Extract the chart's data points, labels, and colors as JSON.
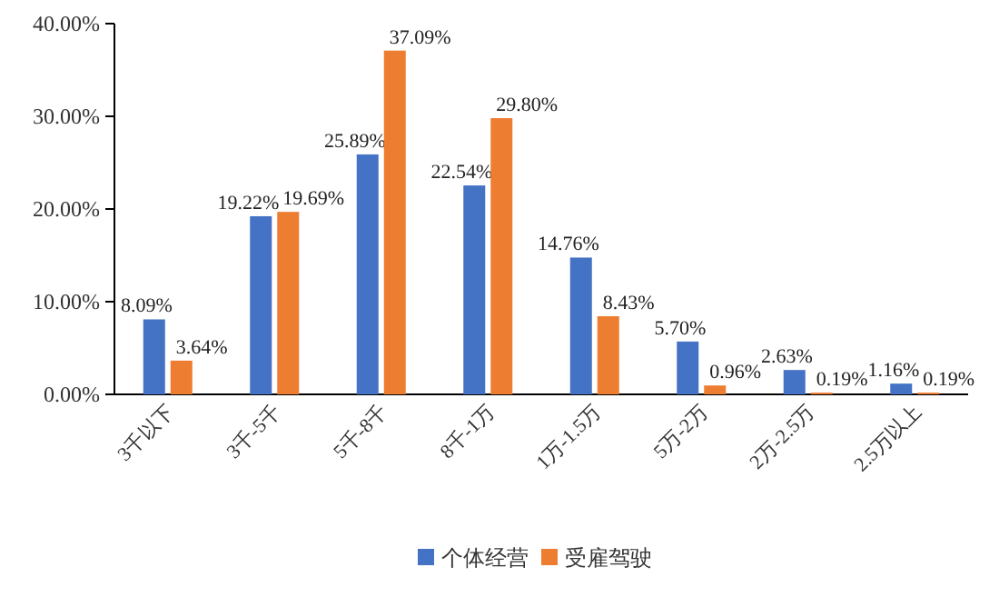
{
  "chart_data": {
    "type": "bar",
    "categories": [
      "3千以下",
      "3千-5千",
      "5千-8千",
      "8千-1万",
      "1万-1.5万",
      "5万-2万",
      "2万-2.5万",
      "2.5万以上"
    ],
    "series": [
      {
        "name": "个体经营",
        "color": "#4472c4",
        "values": [
          8.09,
          19.22,
          25.89,
          22.54,
          14.76,
          5.7,
          2.63,
          1.16
        ],
        "value_labels": [
          "8.09%",
          "19.22%",
          "25.89%",
          "22.54%",
          "14.76%",
          "5.70%",
          "2.63%",
          "1.16%"
        ]
      },
      {
        "name": "受雇驾驶",
        "color": "#ed7d31",
        "values": [
          3.64,
          19.69,
          37.09,
          29.8,
          8.43,
          0.96,
          0.19,
          0.19
        ],
        "value_labels": [
          "3.64%",
          "19.69%",
          "37.09%",
          "29.80%",
          "8.43%",
          "0.96%",
          "0.19%",
          "0.19%"
        ]
      }
    ],
    "ylim": [
      0,
      40
    ],
    "yticks": [
      {
        "value": 0,
        "label": "0.00%"
      },
      {
        "value": 10,
        "label": "10.00%"
      },
      {
        "value": 20,
        "label": "20.00%"
      },
      {
        "value": 30,
        "label": "30.00%"
      },
      {
        "value": 40,
        "label": "40.00%"
      }
    ],
    "legend": "bottom",
    "grid": false
  }
}
